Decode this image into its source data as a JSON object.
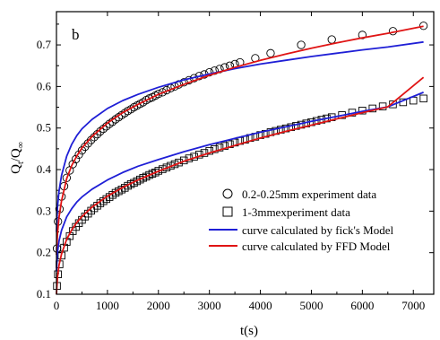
{
  "chart_data": {
    "type": "line",
    "panel_label": "b",
    "xlabel": "t(s)",
    "ylabel": {
      "main": "Q",
      "sub1": "t",
      "mid": "/Q",
      "sub2": "∞"
    },
    "xlim": [
      0,
      7400
    ],
    "ylim": [
      0.1,
      0.78
    ],
    "xticks": [
      0,
      1000,
      2000,
      3000,
      4000,
      5000,
      6000,
      7000
    ],
    "xtick_labels": [
      "0",
      "1000",
      "2000",
      "3000",
      "4000",
      "5000",
      "6000",
      "7000"
    ],
    "yticks": [
      0.1,
      0.2,
      0.3,
      0.4,
      0.5,
      0.6,
      0.7
    ],
    "ytick_labels": [
      "0.1",
      "0.2",
      "0.3",
      "0.4",
      "0.5",
      "0.6",
      "0.7"
    ],
    "grid": false,
    "legend_position": "bottom-right",
    "series": [
      {
        "name": "0.2-0.25mm experiment data",
        "kind": "markers",
        "marker": "circle",
        "color": "#000000",
        "x": [
          10,
          30,
          60,
          100,
          150,
          200,
          260,
          320,
          380,
          440,
          500,
          560,
          620,
          680,
          740,
          800,
          860,
          920,
          980,
          1040,
          1100,
          1160,
          1220,
          1280,
          1340,
          1400,
          1460,
          1520,
          1580,
          1640,
          1700,
          1760,
          1820,
          1880,
          1940,
          2000,
          2080,
          2160,
          2240,
          2320,
          2400,
          2500,
          2600,
          2700,
          2800,
          2900,
          3000,
          3100,
          3200,
          3300,
          3400,
          3500,
          3600,
          3900,
          4200,
          4800,
          5400,
          6000,
          6600,
          7200
        ],
        "y": [
          0.21,
          0.275,
          0.305,
          0.335,
          0.36,
          0.38,
          0.398,
          0.413,
          0.425,
          0.436,
          0.446,
          0.455,
          0.463,
          0.471,
          0.478,
          0.485,
          0.492,
          0.498,
          0.504,
          0.51,
          0.515,
          0.521,
          0.526,
          0.531,
          0.536,
          0.541,
          0.545,
          0.55,
          0.554,
          0.558,
          0.562,
          0.567,
          0.571,
          0.574,
          0.578,
          0.582,
          0.586,
          0.591,
          0.596,
          0.6,
          0.605,
          0.61,
          0.615,
          0.62,
          0.625,
          0.629,
          0.634,
          0.638,
          0.642,
          0.646,
          0.65,
          0.654,
          0.658,
          0.668,
          0.68,
          0.7,
          0.713,
          0.724,
          0.733,
          0.746
        ]
      },
      {
        "name": "1-3mmexperiment data",
        "kind": "markers",
        "marker": "square",
        "color": "#000000",
        "x": [
          10,
          30,
          60,
          100,
          150,
          200,
          260,
          320,
          380,
          440,
          500,
          560,
          620,
          680,
          740,
          800,
          860,
          920,
          980,
          1040,
          1100,
          1160,
          1220,
          1280,
          1340,
          1400,
          1460,
          1520,
          1580,
          1640,
          1700,
          1760,
          1820,
          1880,
          1940,
          2000,
          2080,
          2160,
          2240,
          2320,
          2400,
          2500,
          2600,
          2700,
          2800,
          2900,
          3000,
          3100,
          3200,
          3300,
          3400,
          3500,
          3600,
          3700,
          3800,
          3900,
          4000,
          4100,
          4200,
          4300,
          4400,
          4500,
          4600,
          4700,
          4800,
          4900,
          5000,
          5100,
          5200,
          5300,
          5400,
          5600,
          5800,
          6000,
          6200,
          6400,
          6600,
          6800,
          7000,
          7200
        ],
        "y": [
          0.12,
          0.148,
          0.172,
          0.193,
          0.212,
          0.226,
          0.24,
          0.252,
          0.262,
          0.271,
          0.279,
          0.287,
          0.294,
          0.301,
          0.307,
          0.313,
          0.319,
          0.324,
          0.329,
          0.334,
          0.339,
          0.344,
          0.348,
          0.352,
          0.356,
          0.361,
          0.365,
          0.368,
          0.372,
          0.376,
          0.38,
          0.383,
          0.387,
          0.39,
          0.393,
          0.397,
          0.401,
          0.405,
          0.409,
          0.413,
          0.417,
          0.422,
          0.427,
          0.431,
          0.436,
          0.44,
          0.445,
          0.449,
          0.453,
          0.457,
          0.461,
          0.465,
          0.469,
          0.472,
          0.476,
          0.479,
          0.483,
          0.486,
          0.49,
          0.493,
          0.496,
          0.499,
          0.502,
          0.505,
          0.508,
          0.511,
          0.514,
          0.517,
          0.52,
          0.523,
          0.526,
          0.531,
          0.537,
          0.542,
          0.547,
          0.552,
          0.557,
          0.562,
          0.566,
          0.571
        ]
      },
      {
        "name": "curve calculated by fick's Model",
        "kind": "line",
        "color": "#1f1fd6",
        "x": [
          0,
          20,
          50,
          100,
          200,
          300,
          400,
          500,
          700,
          1000,
          1300,
          1600,
          2000,
          2500,
          3000,
          3500,
          4000,
          4500,
          5000,
          5500,
          6000,
          6500,
          7200
        ],
        "y": [
          0.25,
          0.31,
          0.348,
          0.386,
          0.432,
          0.461,
          0.482,
          0.498,
          0.521,
          0.547,
          0.566,
          0.581,
          0.598,
          0.616,
          0.63,
          0.643,
          0.654,
          0.663,
          0.672,
          0.68,
          0.688,
          0.695,
          0.707
        ]
      },
      {
        "name": "curve calculated by FFD Model",
        "kind": "line",
        "color": "#e01414",
        "x": [
          0,
          20,
          50,
          100,
          200,
          300,
          400,
          500,
          700,
          1000,
          1300,
          1600,
          2000,
          2500,
          3000,
          3500,
          4000,
          4500,
          5000,
          5500,
          6000,
          6500,
          7200
        ],
        "y": [
          0.195,
          0.245,
          0.285,
          0.325,
          0.378,
          0.41,
          0.433,
          0.452,
          0.48,
          0.512,
          0.537,
          0.557,
          0.581,
          0.605,
          0.627,
          0.646,
          0.663,
          0.678,
          0.692,
          0.705,
          0.717,
          0.728,
          0.745
        ]
      },
      {
        "name": "curve calculated by fick's Model",
        "kind": "line",
        "legend": false,
        "color": "#1f1fd6",
        "x": [
          0,
          20,
          50,
          100,
          200,
          300,
          400,
          500,
          700,
          1000,
          1300,
          1600,
          2000,
          2500,
          3000,
          3500,
          4000,
          4500,
          5000,
          5500,
          6000,
          6500,
          7200
        ],
        "y": [
          0.155,
          0.2,
          0.228,
          0.254,
          0.286,
          0.306,
          0.322,
          0.334,
          0.353,
          0.375,
          0.393,
          0.408,
          0.424,
          0.443,
          0.46,
          0.475,
          0.49,
          0.503,
          0.516,
          0.528,
          0.54,
          0.551,
          0.586
        ]
      },
      {
        "name": "curve calculated by FFD Model",
        "kind": "line",
        "legend": false,
        "color": "#e01414",
        "x": [
          0,
          20,
          50,
          100,
          200,
          300,
          400,
          500,
          700,
          1000,
          1300,
          1600,
          2000,
          2500,
          3000,
          3500,
          4000,
          4500,
          5000,
          5500,
          6000,
          6500,
          7200
        ],
        "y": [
          0.1,
          0.14,
          0.17,
          0.197,
          0.232,
          0.255,
          0.273,
          0.287,
          0.31,
          0.336,
          0.357,
          0.375,
          0.396,
          0.42,
          0.44,
          0.458,
          0.476,
          0.492,
          0.507,
          0.522,
          0.537,
          0.551,
          0.622
        ]
      }
    ]
  }
}
